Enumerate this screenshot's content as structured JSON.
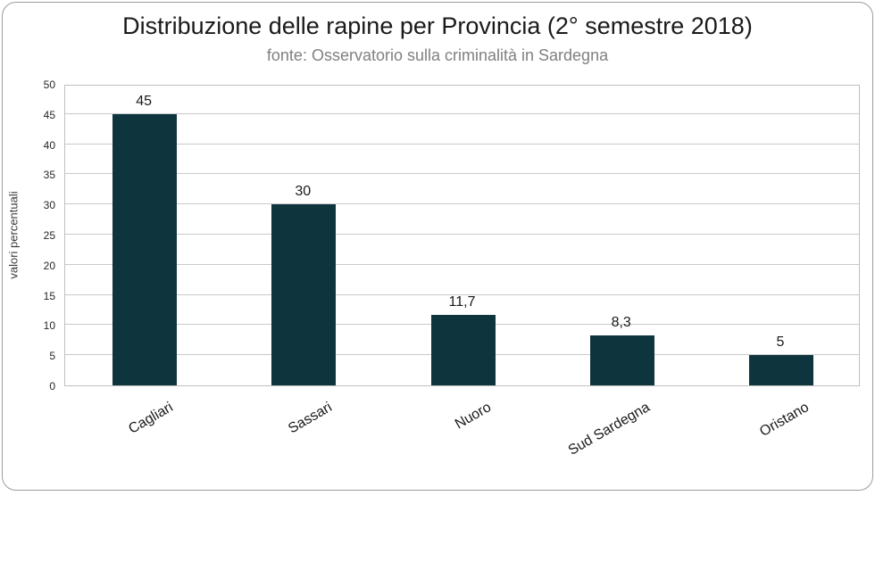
{
  "title": "Distribuzione delle rapine per Provincia (2° semestre 2018)",
  "subtitle": "fonte: Osservatorio sulla criminalità in Sardegna",
  "yaxis": {
    "label": "valori percentuali",
    "ticks": [
      0,
      5,
      10,
      15,
      20,
      25,
      30,
      35,
      40,
      45,
      50
    ]
  },
  "chart_data": {
    "type": "bar",
    "title": "Distribuzione delle rapine per Provincia (2° semestre 2018)",
    "subtitle": "fonte: Osservatorio sulla criminalità in Sardegna",
    "categories": [
      "Cagliari",
      "Sassari",
      "Nuoro",
      "Sud Sardegna",
      "Oristano"
    ],
    "values": [
      45,
      30,
      11.7,
      8.3,
      5
    ],
    "value_labels": [
      "45",
      "30",
      "11,7",
      "8,3",
      "5"
    ],
    "xlabel": "",
    "ylabel": "valori percentuali",
    "ylim": [
      0,
      50
    ],
    "ytick_step": 5,
    "grid": true,
    "legend": false
  },
  "colors": {
    "bar": "#0e343e",
    "gridline": "#c9c9c9",
    "plot_border": "#bfbfbf",
    "card_border": "#9c9c9c",
    "title_text": "#1a1a1a",
    "subtitle_text": "#808080",
    "tick_text": "#262626"
  }
}
